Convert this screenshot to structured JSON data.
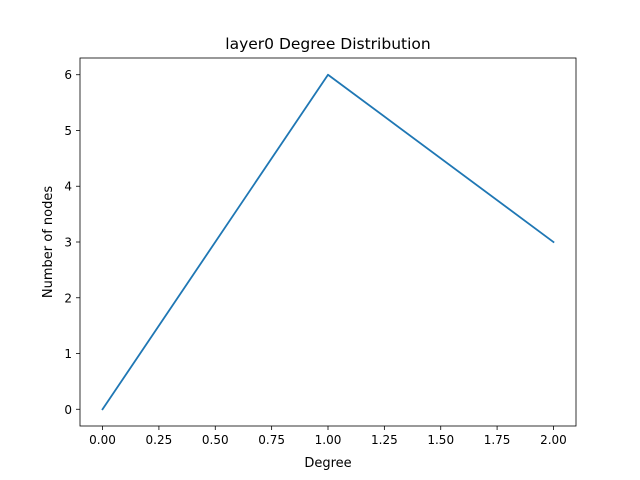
{
  "chart_data": {
    "type": "line",
    "title": "layer0 Degree Distribution",
    "xlabel": "Degree",
    "ylabel": "Number of nodes",
    "xlim": [
      -0.1,
      2.1
    ],
    "ylim": [
      -0.3,
      6.3
    ],
    "xticks": [
      0.0,
      0.25,
      0.5,
      0.75,
      1.0,
      1.25,
      1.5,
      1.75,
      2.0
    ],
    "xtick_labels": [
      "0.00",
      "0.25",
      "0.50",
      "0.75",
      "1.00",
      "1.25",
      "1.50",
      "1.75",
      "2.00"
    ],
    "yticks": [
      0,
      1,
      2,
      3,
      4,
      5,
      6
    ],
    "ytick_labels": [
      "0",
      "1",
      "2",
      "3",
      "4",
      "5",
      "6"
    ],
    "grid": false,
    "series": [
      {
        "x": [
          0,
          1,
          2
        ],
        "values": [
          0,
          6,
          3
        ],
        "color": "#1f77b4"
      }
    ]
  }
}
